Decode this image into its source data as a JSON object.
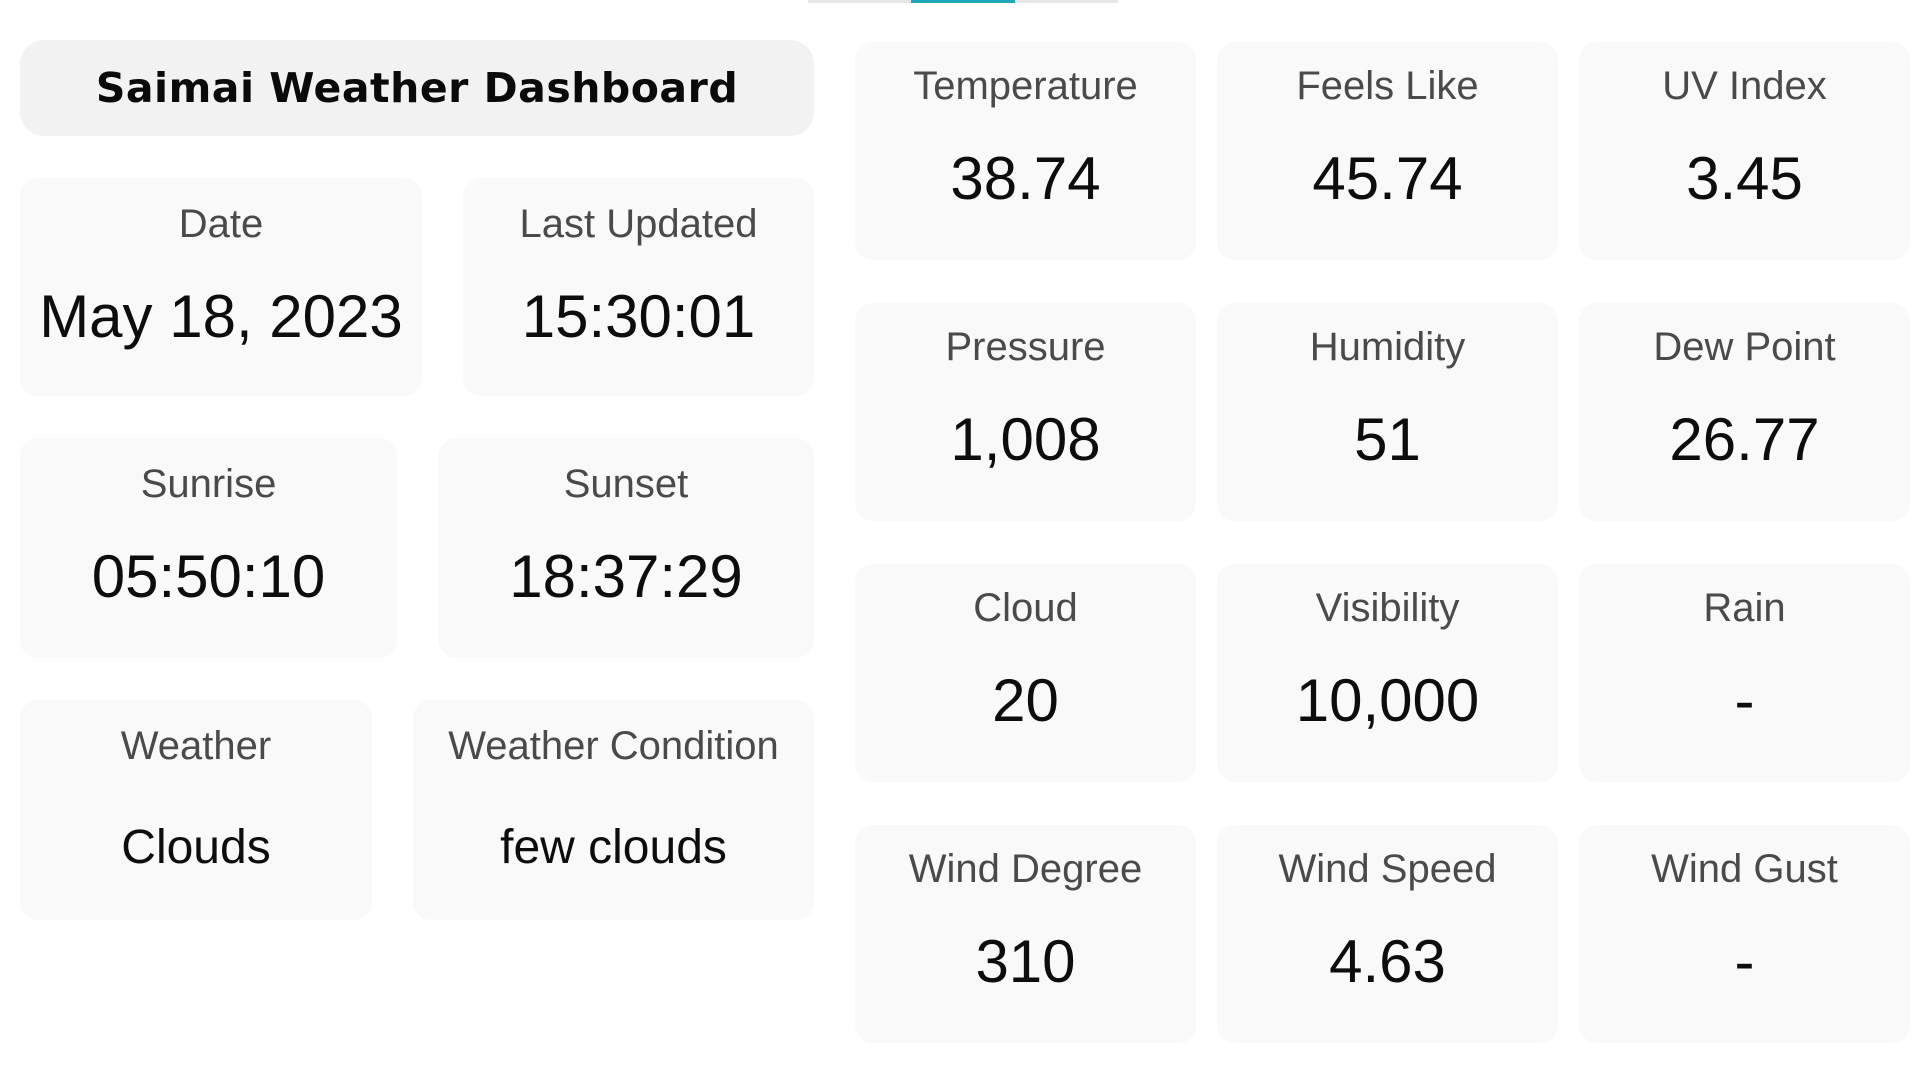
{
  "dashboard": {
    "title": "Saimai Weather Dashboard",
    "info": {
      "date": {
        "label": "Date",
        "value": "May 18, 2023"
      },
      "last_updated": {
        "label": "Last Updated",
        "value": "15:30:01"
      },
      "sunrise": {
        "label": "Sunrise",
        "value": "05:50:10"
      },
      "sunset": {
        "label": "Sunset",
        "value": "18:37:29"
      },
      "weather": {
        "label": "Weather",
        "value": "Clouds"
      },
      "weather_condition": {
        "label": "Weather Condition",
        "value": "few clouds"
      }
    },
    "metrics": {
      "temperature": {
        "label": "Temperature",
        "value": "38.74"
      },
      "feels_like": {
        "label": "Feels Like",
        "value": "45.74"
      },
      "uv_index": {
        "label": "UV Index",
        "value": "3.45"
      },
      "pressure": {
        "label": "Pressure",
        "value": "1,008"
      },
      "humidity": {
        "label": "Humidity",
        "value": "51"
      },
      "dew_point": {
        "label": "Dew Point",
        "value": "26.77"
      },
      "cloud": {
        "label": "Cloud",
        "value": "20"
      },
      "visibility": {
        "label": "Visibility",
        "value": "10,000"
      },
      "rain": {
        "label": "Rain",
        "value": "-"
      },
      "wind_degree": {
        "label": "Wind Degree",
        "value": "310"
      },
      "wind_speed": {
        "label": "Wind Speed",
        "value": "4.63"
      },
      "wind_gust": {
        "label": "Wind Gust",
        "value": "-"
      }
    }
  },
  "colors": {
    "card_background": "#f9f9f9",
    "title_background": "#f2f2f2",
    "active_tab_indicator": "#20a8b8"
  }
}
